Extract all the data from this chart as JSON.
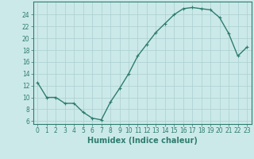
{
  "x": [
    0,
    1,
    2,
    3,
    4,
    5,
    6,
    7,
    8,
    9,
    10,
    11,
    12,
    13,
    14,
    15,
    16,
    17,
    18,
    19,
    20,
    21,
    22,
    23
  ],
  "y": [
    12.5,
    10,
    10,
    9,
    9,
    7.5,
    6.5,
    6.2,
    9.2,
    11.5,
    14,
    17,
    19,
    21,
    22.5,
    24,
    25,
    25.2,
    25,
    24.8,
    23.5,
    20.8,
    17,
    18.5
  ],
  "line_color": "#2e7d6e",
  "marker": "+",
  "marker_color": "#2e7d6e",
  "bg_color": "#cce9e9",
  "grid_color": "#aacfcf",
  "xlabel": "Humidex (Indice chaleur)",
  "xlim": [
    -0.5,
    23.5
  ],
  "ylim": [
    5.5,
    26.2
  ],
  "yticks": [
    6,
    8,
    10,
    12,
    14,
    16,
    18,
    20,
    22,
    24
  ],
  "xticks": [
    0,
    1,
    2,
    3,
    4,
    5,
    6,
    7,
    8,
    9,
    10,
    11,
    12,
    13,
    14,
    15,
    16,
    17,
    18,
    19,
    20,
    21,
    22,
    23
  ],
  "tick_label_size": 5.5,
  "xlabel_size": 7.0,
  "linewidth": 1.0,
  "markersize": 3.5
}
